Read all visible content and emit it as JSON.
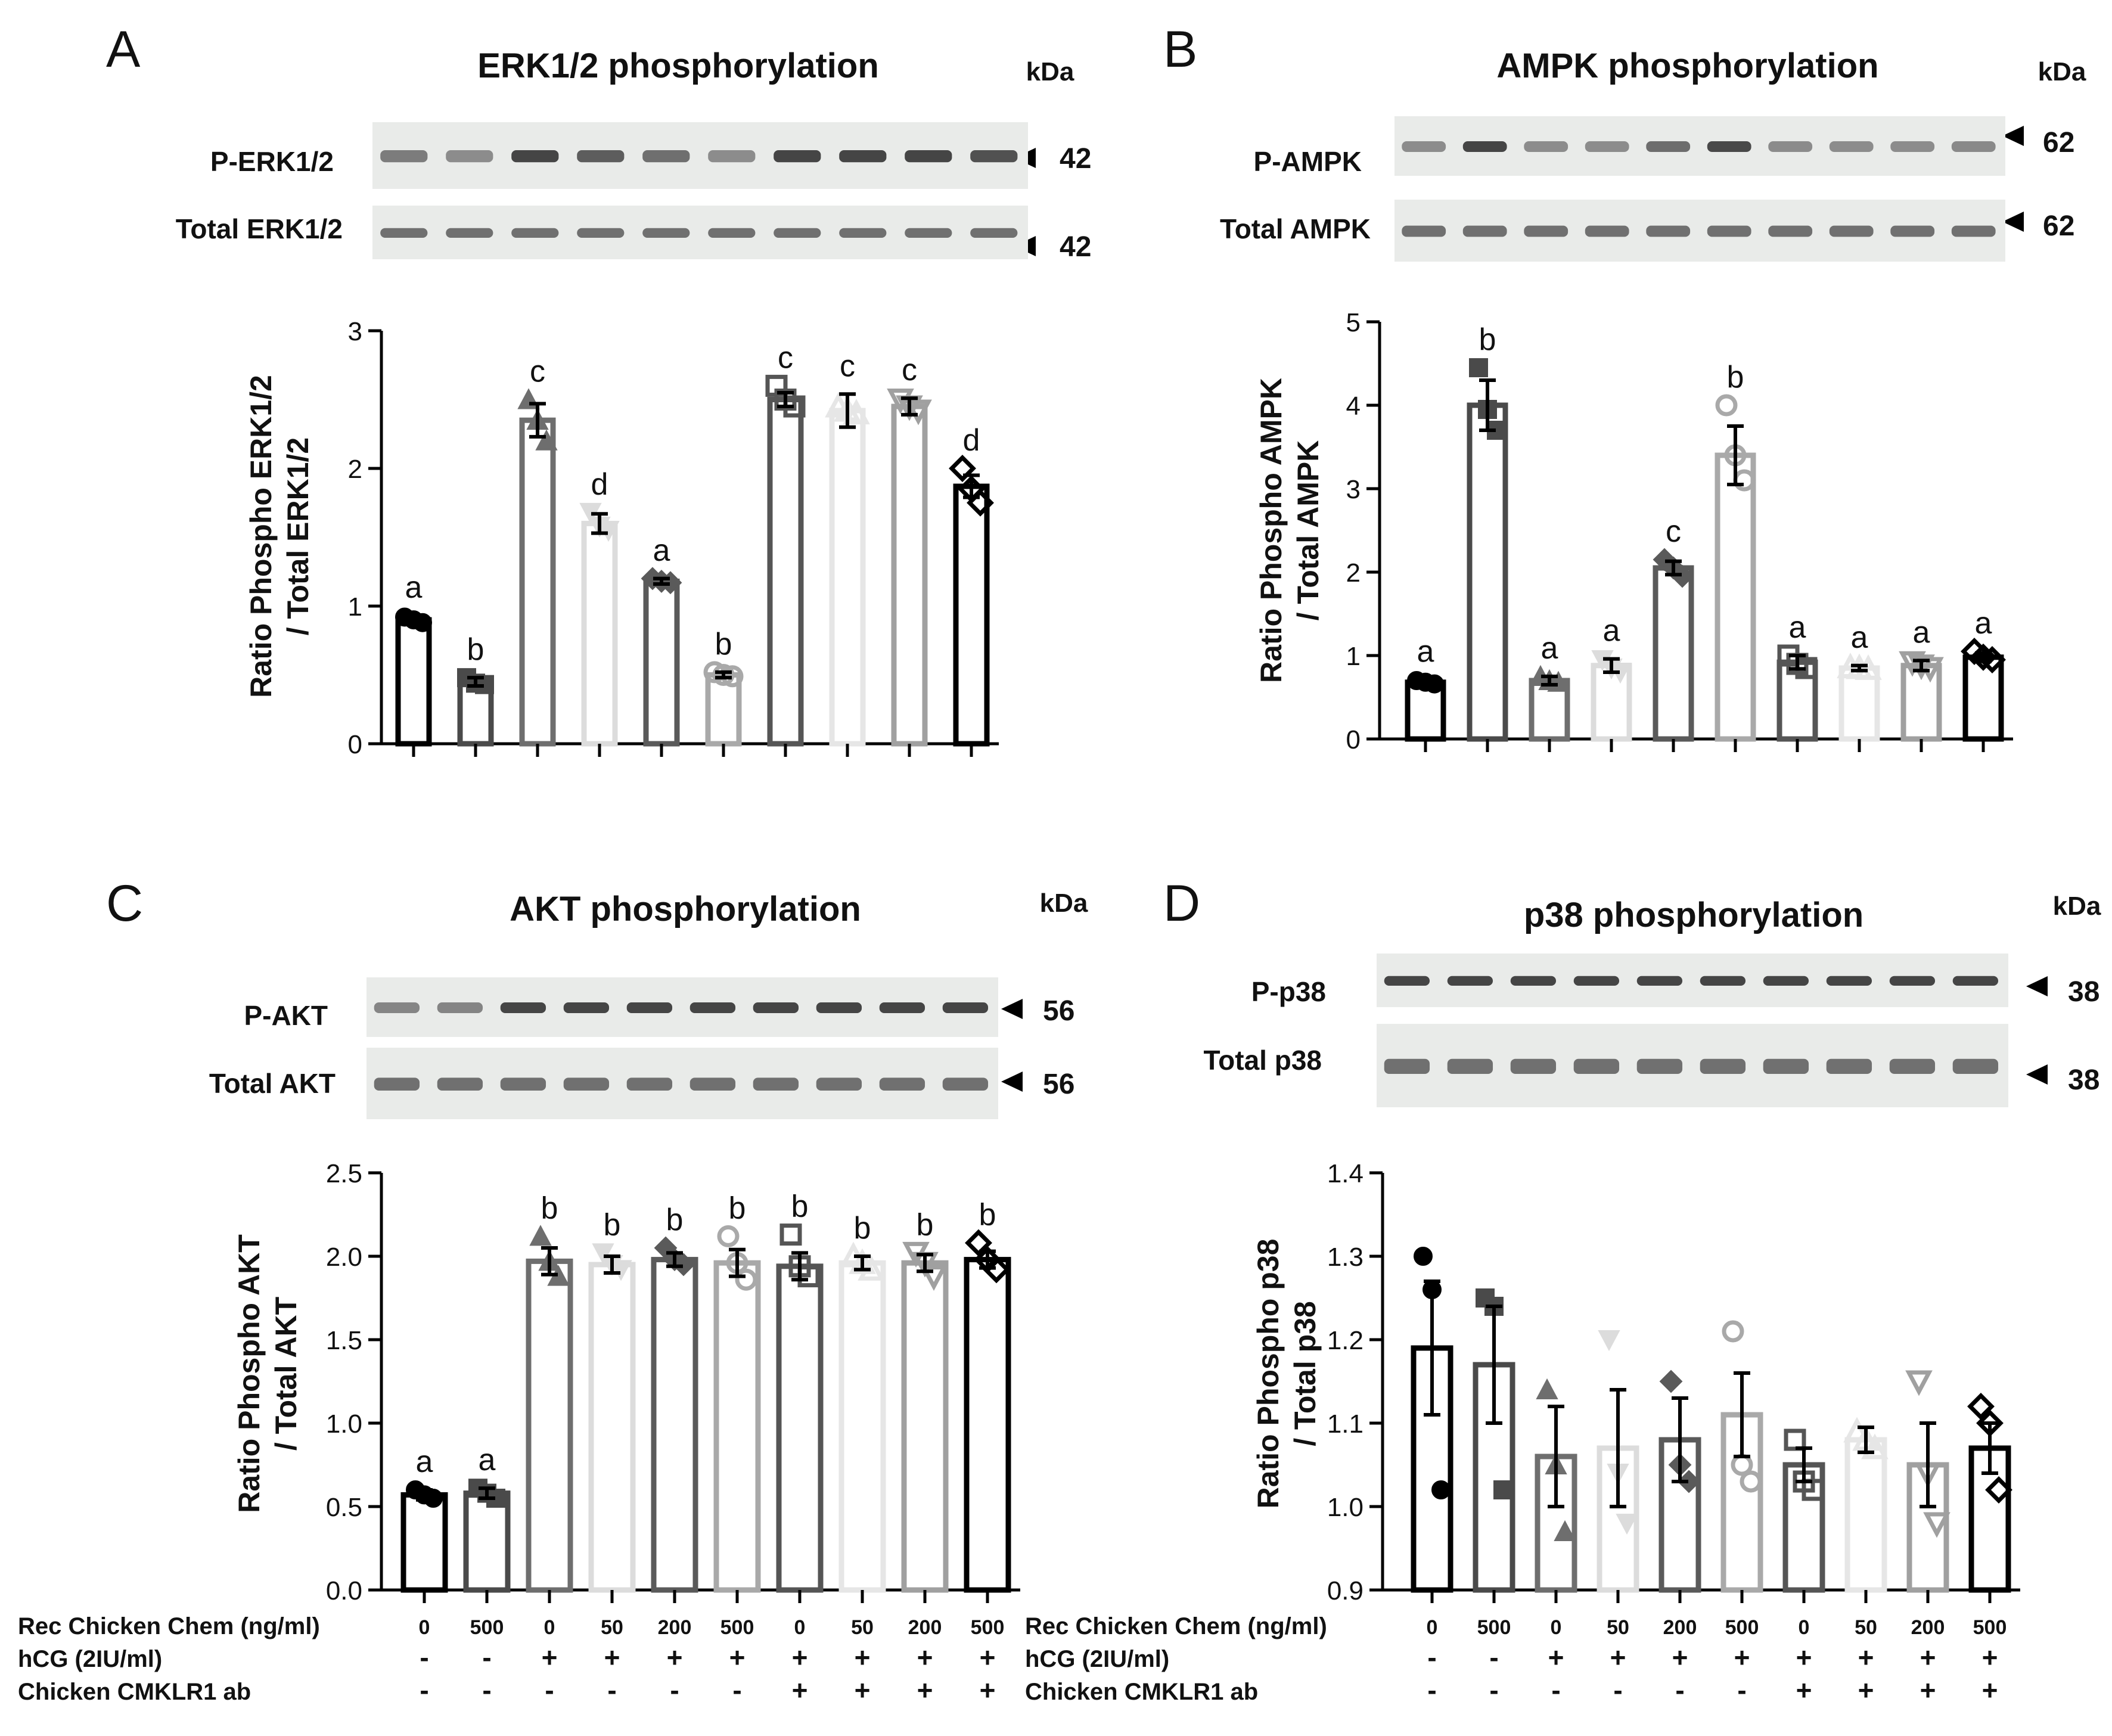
{
  "conditions": {
    "row_labels": [
      "Rec Chicken Chem (ng/ml)",
      "hCG (2IU/ml)",
      "Chicken CMKLR1 ab"
    ],
    "chem": [
      "0",
      "500",
      "0",
      "50",
      "200",
      "500",
      "0",
      "50",
      "200",
      "500"
    ],
    "hcg": [
      "-",
      "-",
      "+",
      "+",
      "+",
      "+",
      "+",
      "+",
      "+",
      "+"
    ],
    "ab": [
      "-",
      "-",
      "-",
      "-",
      "-",
      "-",
      "+",
      "+",
      "+",
      "+"
    ]
  },
  "series_colors": [
    "#000000",
    "#4a4a4a",
    "#6e6e6e",
    "#dcdcdc",
    "#5a5a5a",
    "#a9a9a9",
    "#555555",
    "#e6e6e6",
    "#a0a0a0",
    "#000000"
  ],
  "marker_shapes": [
    "circle",
    "square",
    "triangle",
    "tri-down",
    "diamond",
    "circle-open",
    "square-open",
    "triangle-open",
    "tri-down-open",
    "diamond-open"
  ],
  "chart_data": [
    {
      "type": "bar",
      "panel": "A",
      "title": "ERK1/2 phosphorylation",
      "kda_label": "kDa",
      "blot_rows": [
        {
          "label": "P-ERK1/2",
          "kda": "42"
        },
        {
          "label": "Total ERK1/2",
          "kda": "42"
        }
      ],
      "ylabel": [
        "Ratio Phospho ERK1/2",
        "/ Total ERK1/2"
      ],
      "ylim": [
        0,
        3
      ],
      "yticks": [
        "0",
        "1",
        "2",
        "3"
      ],
      "ytick_values": [
        0,
        1,
        2,
        3
      ],
      "show_condition_table": false,
      "values": [
        0.9,
        0.45,
        2.35,
        1.6,
        1.18,
        0.5,
        2.5,
        2.42,
        2.45,
        1.87
      ],
      "errors": [
        0.03,
        0.03,
        0.12,
        0.07,
        0.02,
        0.02,
        0.05,
        0.12,
        0.06,
        0.08
      ],
      "letters": [
        "a",
        "b",
        "c",
        "d",
        "a",
        "b",
        "c",
        "c",
        "c",
        "d"
      ],
      "points": [
        [
          0.92,
          0.9,
          0.88
        ],
        [
          0.48,
          0.44,
          0.43
        ],
        [
          2.5,
          2.35,
          2.2
        ],
        [
          1.68,
          1.58,
          1.55
        ],
        [
          1.2,
          1.18,
          1.17
        ],
        [
          0.52,
          0.5,
          0.49
        ],
        [
          2.6,
          2.5,
          2.45
        ],
        [
          2.45,
          2.42,
          2.4
        ],
        [
          2.5,
          2.45,
          2.42
        ],
        [
          2.0,
          1.85,
          1.75
        ]
      ]
    },
    {
      "type": "bar",
      "panel": "B",
      "title": "AMPK phosphorylation",
      "kda_label": "kDa",
      "blot_rows": [
        {
          "label": "P-AMPK",
          "kda": "62"
        },
        {
          "label": "Total AMPK",
          "kda": "62"
        }
      ],
      "ylabel": [
        "Ratio Phospho AMPK",
        "/ Total AMPK"
      ],
      "ylim": [
        0,
        5
      ],
      "yticks": [
        "0",
        "1",
        "2",
        "3",
        "4",
        "5"
      ],
      "ytick_values": [
        0,
        1,
        2,
        3,
        4,
        5
      ],
      "show_condition_table": false,
      "values": [
        0.68,
        4.0,
        0.7,
        0.88,
        2.05,
        3.4,
        0.92,
        0.85,
        0.88,
        0.98
      ],
      "errors": [
        0.03,
        0.3,
        0.05,
        0.08,
        0.08,
        0.35,
        0.08,
        0.03,
        0.06,
        0.05
      ],
      "letters": [
        "a",
        "b",
        "a",
        "a",
        "c",
        "b",
        "a",
        "a",
        "a",
        "a"
      ],
      "points": [
        [
          0.7,
          0.68,
          0.66
        ],
        [
          4.45,
          3.95,
          3.7
        ],
        [
          0.75,
          0.7,
          0.68
        ],
        [
          0.95,
          0.85,
          0.8
        ],
        [
          2.15,
          2.05,
          1.95
        ],
        [
          4.0,
          3.4,
          3.1
        ],
        [
          1.0,
          0.9,
          0.85
        ],
        [
          0.86,
          0.85,
          0.84
        ],
        [
          0.92,
          0.88,
          0.85
        ],
        [
          1.05,
          0.98,
          0.95
        ]
      ]
    },
    {
      "type": "bar",
      "panel": "C",
      "title": "AKT phosphorylation",
      "kda_label": "kDa",
      "blot_rows": [
        {
          "label": "P-AKT",
          "kda": "56"
        },
        {
          "label": "Total AKT",
          "kda": "56"
        }
      ],
      "ylabel": [
        "Ratio Phospho AKT",
        "/ Total AKT"
      ],
      "ylim": [
        0,
        2.5
      ],
      "yticks": [
        "0.0",
        "0.5",
        "1.0",
        "1.5",
        "2.0",
        "2.5"
      ],
      "ytick_values": [
        0,
        0.5,
        1.0,
        1.5,
        2.0,
        2.5
      ],
      "show_condition_table": true,
      "values": [
        0.57,
        0.58,
        1.97,
        1.95,
        1.98,
        1.96,
        1.94,
        1.96,
        1.96,
        1.98
      ],
      "errors": [
        0.03,
        0.03,
        0.08,
        0.05,
        0.04,
        0.08,
        0.08,
        0.04,
        0.05,
        0.05
      ],
      "letters": [
        "a",
        "a",
        "b",
        "b",
        "b",
        "b",
        "b",
        "b",
        "b",
        "b"
      ],
      "points": [
        [
          0.6,
          0.57,
          0.55
        ],
        [
          0.61,
          0.58,
          0.55
        ],
        [
          2.12,
          1.97,
          1.88
        ],
        [
          2.02,
          1.95,
          1.92
        ],
        [
          2.05,
          1.98,
          1.95
        ],
        [
          2.12,
          1.96,
          1.86
        ],
        [
          2.13,
          1.94,
          1.88
        ],
        [
          2.0,
          1.96,
          1.92
        ],
        [
          2.02,
          1.96,
          1.88
        ],
        [
          2.08,
          1.98,
          1.92
        ]
      ]
    },
    {
      "type": "bar",
      "panel": "D",
      "title": "p38 phosphorylation",
      "kda_label": "kDa",
      "blot_rows": [
        {
          "label": "P-p38",
          "kda": "38"
        },
        {
          "label": "Total p38",
          "kda": "38"
        }
      ],
      "ylabel": [
        "Ratio Phospho p38",
        "/ Total p38"
      ],
      "ylim": [
        0.9,
        1.4
      ],
      "yticks": [
        "0.9",
        "1.0",
        "1.1",
        "1.2",
        "1.3",
        "1.4"
      ],
      "ytick_values": [
        0.9,
        1.0,
        1.1,
        1.2,
        1.3,
        1.4
      ],
      "show_condition_table": true,
      "values": [
        1.19,
        1.17,
        1.06,
        1.07,
        1.08,
        1.11,
        1.05,
        1.08,
        1.05,
        1.07
      ],
      "errors": [
        0.08,
        0.07,
        0.06,
        0.07,
        0.05,
        0.05,
        0.02,
        0.015,
        0.05,
        0.03
      ],
      "letters": [
        "",
        "",
        "",
        "",
        "",
        "",
        "",
        "",
        "",
        ""
      ],
      "points": [
        [
          1.3,
          1.26,
          1.02
        ],
        [
          1.25,
          1.24,
          1.02
        ],
        [
          1.14,
          1.05,
          0.97
        ],
        [
          1.2,
          1.04,
          0.98
        ],
        [
          1.15,
          1.05,
          1.03
        ],
        [
          1.21,
          1.05,
          1.03
        ],
        [
          1.08,
          1.03,
          1.02
        ],
        [
          1.09,
          1.08,
          1.07
        ],
        [
          1.15,
          1.04,
          0.98
        ],
        [
          1.12,
          1.1,
          1.02
        ]
      ]
    }
  ]
}
